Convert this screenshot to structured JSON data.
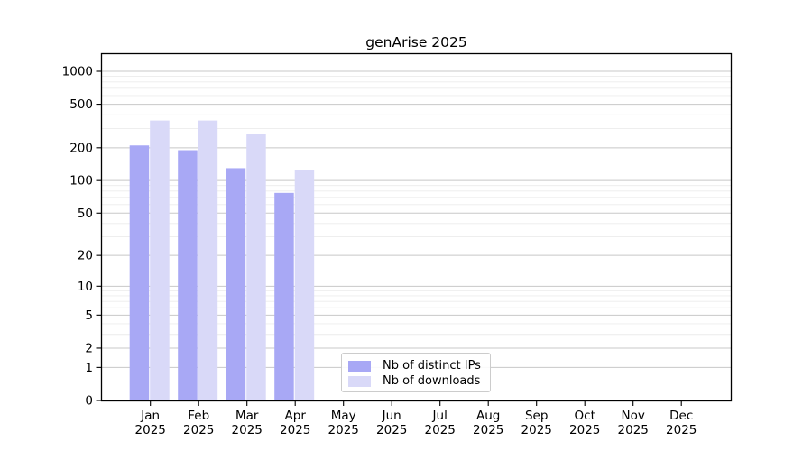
{
  "title": "genArise 2025",
  "chart_data": {
    "type": "bar",
    "title": "genArise 2025",
    "scale": "log1p",
    "categories": [
      "Jan",
      "Feb",
      "Mar",
      "Apr",
      "May",
      "Jun",
      "Jul",
      "Aug",
      "Sep",
      "Oct",
      "Nov",
      "Dec"
    ],
    "category_year": "2025",
    "series": [
      {
        "name": "Nb of distinct IPs",
        "color": "#a8a8f5",
        "values": [
          210,
          190,
          130,
          77,
          0,
          0,
          0,
          0,
          0,
          0,
          0,
          0
        ]
      },
      {
        "name": "Nb of downloads",
        "color": "#d9d9f8",
        "values": [
          355,
          355,
          265,
          125,
          0,
          0,
          0,
          0,
          0,
          0,
          0,
          0
        ]
      }
    ],
    "yticks": [
      0,
      1,
      2,
      5,
      10,
      20,
      50,
      100,
      200,
      500,
      1000
    ],
    "ylim": [
      0,
      1400
    ],
    "xlabel": "",
    "ylabel": "",
    "grid": true,
    "legend_position": "lower center-right inside plot"
  },
  "colors": {
    "major_grid": "#c8c8c8",
    "minor_grid": "#ececec",
    "spine": "#000000",
    "background": "#ffffff"
  }
}
